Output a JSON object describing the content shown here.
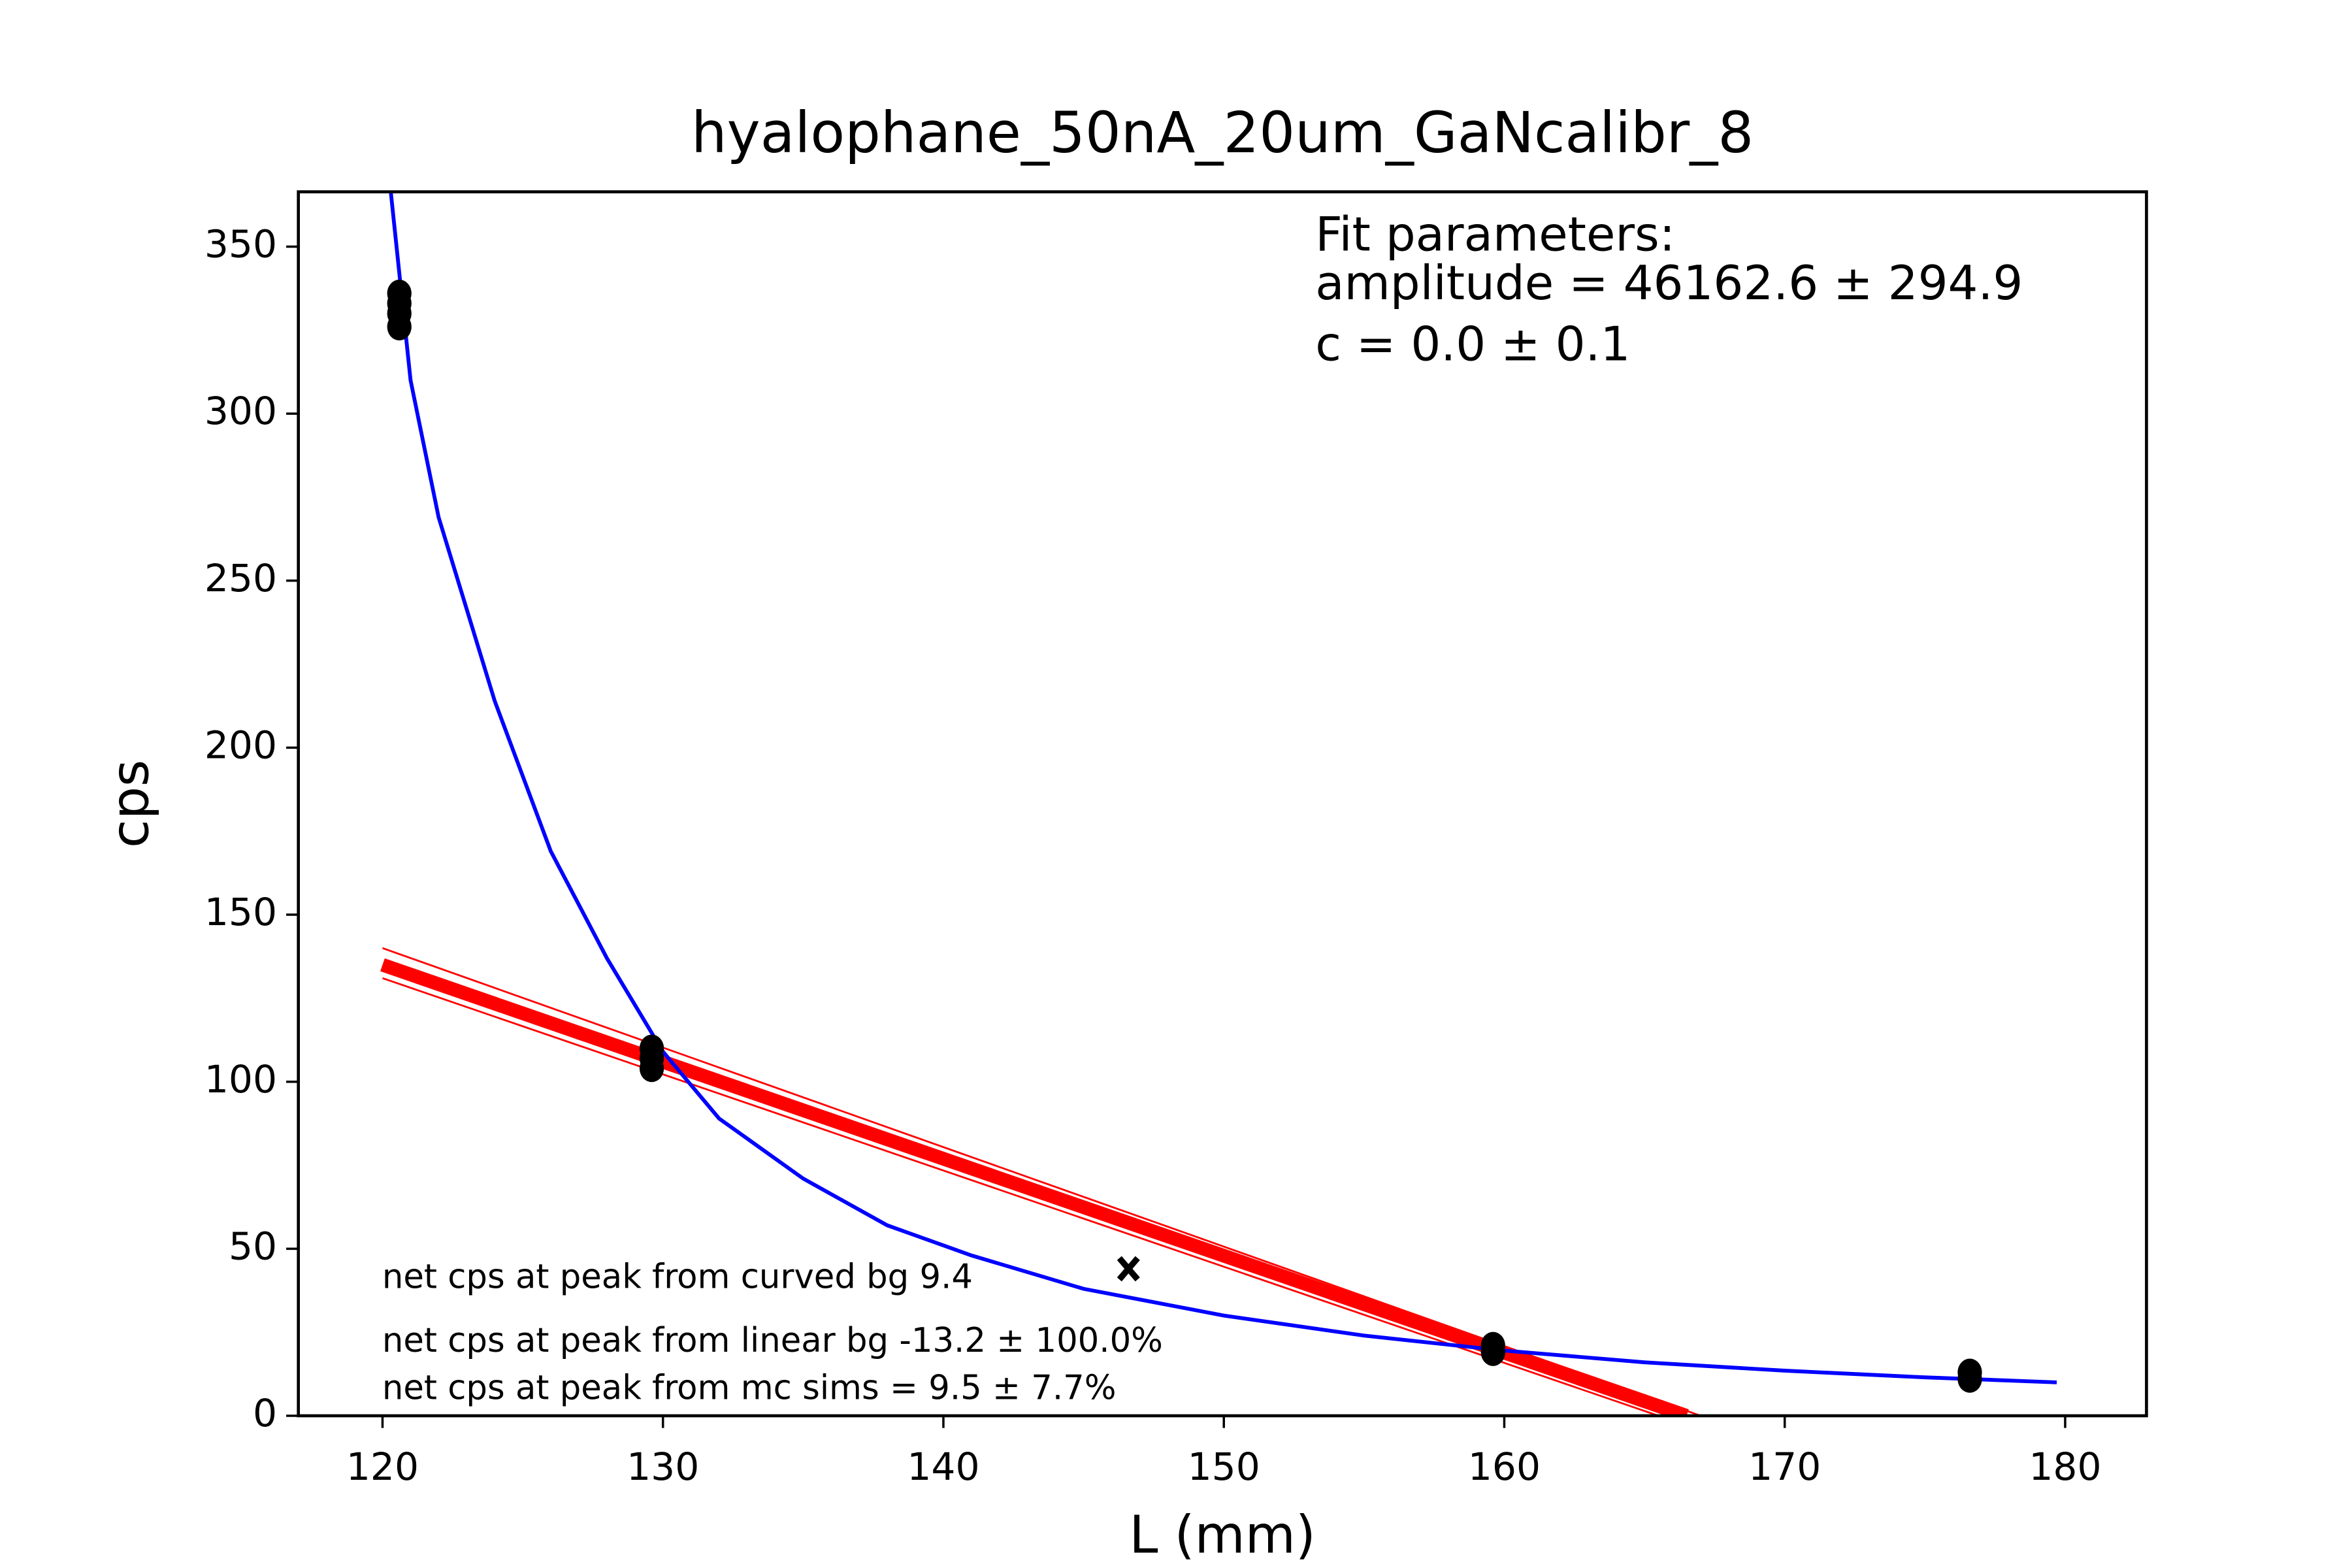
{
  "chart_data": {
    "type": "scatter",
    "title": "hyalophane_50nA_20um_GaNcalibr_8",
    "xlabel": "L (mm)",
    "ylabel": "cps",
    "xlim": [
      117,
      182.9
    ],
    "ylim": [
      0,
      366.4
    ],
    "xticks": [
      120,
      130,
      140,
      150,
      160,
      170,
      180
    ],
    "yticks": [
      0,
      50,
      100,
      150,
      200,
      250,
      300,
      350
    ],
    "grid": false,
    "fit_text": [
      "Fit parameters:",
      "amplitude = 46162.6 ± 294.9",
      "c = 0.0 ± 0.1"
    ],
    "notes": [
      "net cps at peak from curved bg 9.4",
      "net cps at peak from linear bg -13.2 ± 100.0%",
      "net cps at peak from mc sims = 9.5 ± 7.7%"
    ],
    "series": [
      {
        "type": "line",
        "color": "#ff0000",
        "width": 1.2,
        "x": [
          120,
          167
        ],
        "values": [
          140,
          0
        ]
      },
      {
        "type": "line",
        "color": "#ff0000",
        "width": 1.2,
        "x": [
          120,
          165.5
        ],
        "values": [
          131,
          0
        ]
      },
      {
        "type": "line",
        "color": "#ff0000",
        "width": 9,
        "x": [
          120,
          166.5
        ],
        "values": [
          135,
          0
        ]
      },
      {
        "type": "line",
        "color": "#0000ff",
        "width": 2.5,
        "x": [
          120.3,
          121,
          122,
          124,
          126,
          128,
          130,
          132,
          135,
          138,
          141,
          145,
          150,
          155,
          160,
          165,
          170,
          175,
          179.7
        ],
        "values": [
          366,
          310,
          269,
          214,
          169,
          137,
          109,
          89,
          71,
          57,
          48,
          38,
          30,
          24,
          19.5,
          16,
          13.5,
          11.5,
          10
        ]
      },
      {
        "type": "scatter",
        "marker": "o",
        "color": "#000000",
        "x": [
          120.6,
          120.6,
          120.6,
          120.6,
          129.6,
          129.6,
          129.6,
          159.6,
          159.6,
          176.6,
          176.6
        ],
        "values": [
          326,
          330,
          333,
          336,
          104,
          107,
          110,
          19,
          21,
          11,
          13
        ]
      },
      {
        "type": "scatter",
        "marker": "x",
        "color": "#000000",
        "x": [
          146.6
        ],
        "values": [
          44
        ]
      }
    ]
  }
}
